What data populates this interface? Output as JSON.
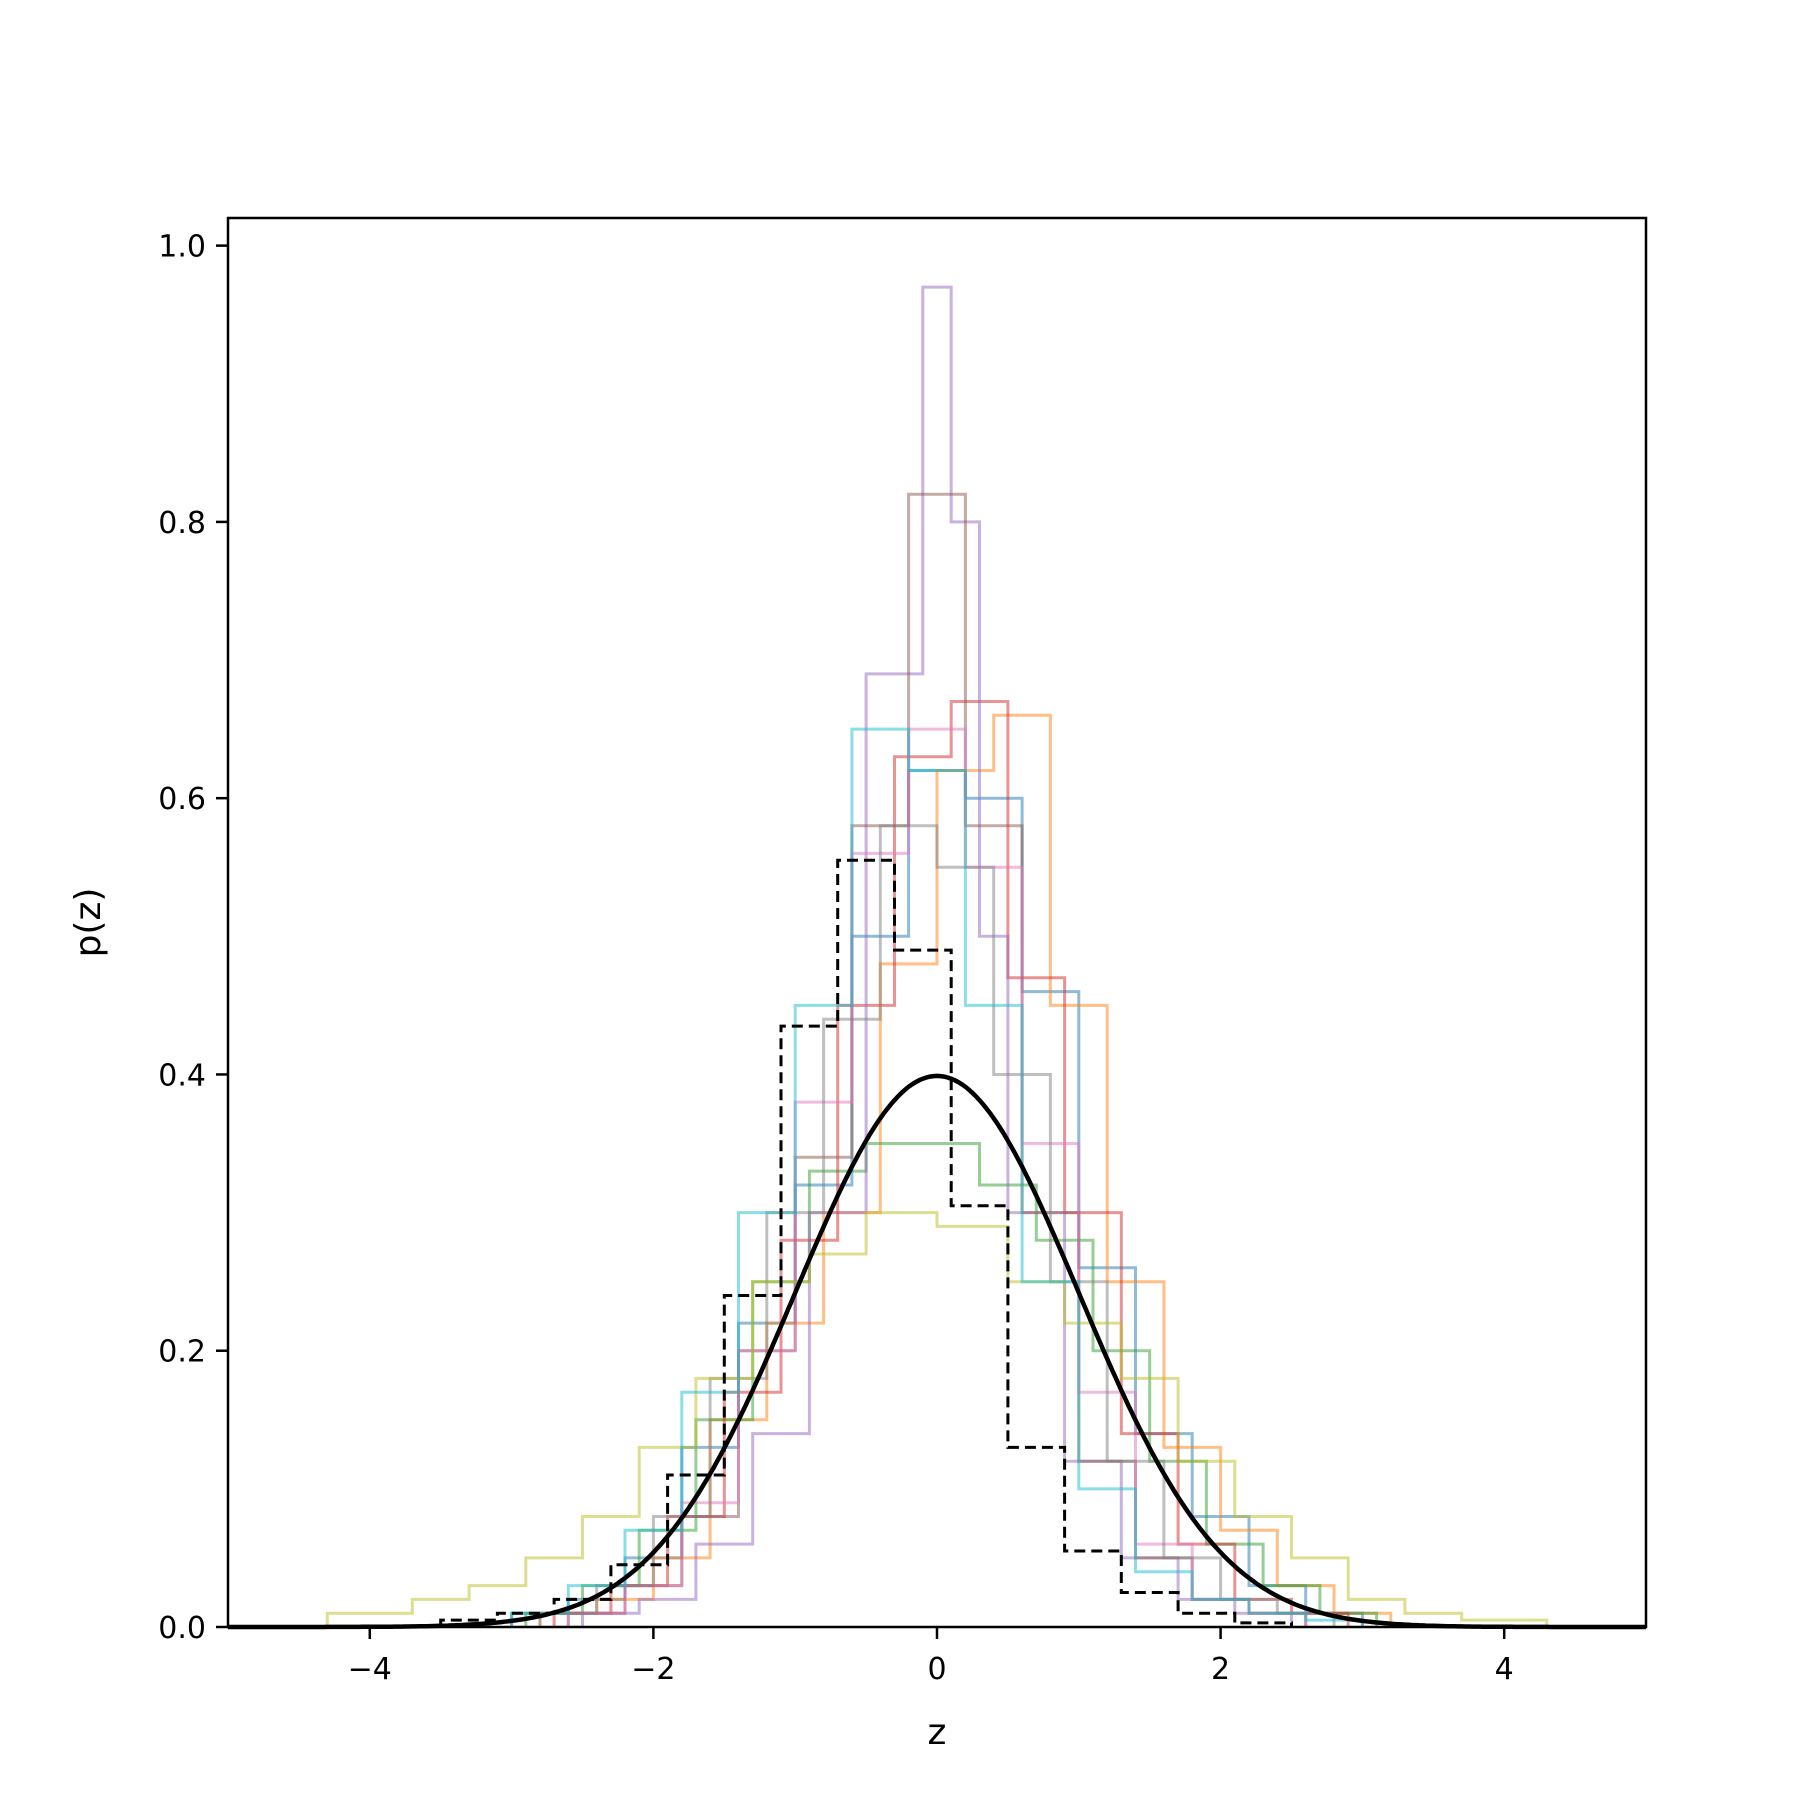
{
  "chart_data": {
    "type": "line",
    "title": "",
    "xlabel": "z",
    "ylabel": "p(z)",
    "xlim": [
      -5,
      5
    ],
    "ylim": [
      0,
      1.02
    ],
    "xticks": [
      -4,
      -2,
      0,
      2,
      4
    ],
    "xtick_labels": [
      "−4",
      "−2",
      "0",
      "2",
      "4"
    ],
    "yticks": [
      0.0,
      0.2,
      0.4,
      0.6,
      0.8,
      1.0
    ],
    "ytick_labels": [
      "0.0",
      "0.2",
      "0.4",
      "0.6",
      "0.8",
      "1.0"
    ],
    "grid": false,
    "legend": "none",
    "histogram_series": [
      {
        "color": "#1f77b4",
        "edges": [
          -3.0,
          -2.6,
          -2.2,
          -1.8,
          -1.4,
          -1.0,
          -0.6,
          -0.2,
          0.2,
          0.6,
          1.0,
          1.4,
          1.8,
          2.2,
          2.6,
          3.0
        ],
        "values": [
          0.01,
          0.02,
          0.05,
          0.13,
          0.22,
          0.32,
          0.5,
          0.62,
          0.6,
          0.46,
          0.26,
          0.14,
          0.08,
          0.03,
          0.01
        ]
      },
      {
        "color": "#ff7f0e",
        "edges": [
          -2.8,
          -2.4,
          -2.0,
          -1.6,
          -1.2,
          -0.8,
          -0.4,
          0.0,
          0.4,
          0.8,
          1.2,
          1.6,
          2.0,
          2.4,
          2.8,
          3.2
        ],
        "values": [
          0.01,
          0.02,
          0.05,
          0.15,
          0.22,
          0.3,
          0.48,
          0.62,
          0.66,
          0.45,
          0.25,
          0.13,
          0.07,
          0.03,
          0.01
        ]
      },
      {
        "color": "#2ca02c",
        "edges": [
          -2.9,
          -2.5,
          -2.1,
          -1.7,
          -1.3,
          -0.9,
          -0.5,
          -0.1,
          0.3,
          0.7,
          1.1,
          1.5,
          1.9,
          2.3,
          2.7,
          3.1
        ],
        "values": [
          0.01,
          0.03,
          0.07,
          0.15,
          0.25,
          0.33,
          0.35,
          0.35,
          0.32,
          0.28,
          0.2,
          0.12,
          0.06,
          0.03,
          0.01
        ]
      },
      {
        "color": "#d62728",
        "edges": [
          -2.7,
          -2.3,
          -1.9,
          -1.5,
          -1.1,
          -0.7,
          -0.3,
          0.1,
          0.5,
          0.9,
          1.3,
          1.7,
          2.1,
          2.5,
          2.9
        ],
        "values": [
          0.01,
          0.03,
          0.08,
          0.17,
          0.28,
          0.45,
          0.63,
          0.67,
          0.47,
          0.3,
          0.14,
          0.06,
          0.02,
          0.01
        ]
      },
      {
        "color": "#9467bd",
        "edges": [
          -2.5,
          -2.1,
          -1.7,
          -1.3,
          -0.9,
          -0.5,
          -0.1,
          0.1,
          0.3,
          0.5,
          0.9,
          1.3,
          1.7,
          2.1,
          2.5
        ],
        "values": [
          0.01,
          0.02,
          0.06,
          0.14,
          0.3,
          0.69,
          0.97,
          0.8,
          0.5,
          0.3,
          0.12,
          0.05,
          0.02,
          0.01
        ]
      },
      {
        "color": "#8c564b",
        "edges": [
          -2.6,
          -2.2,
          -1.8,
          -1.4,
          -1.0,
          -0.6,
          -0.2,
          0.2,
          0.6,
          1.0,
          1.4,
          1.8,
          2.2,
          2.6
        ],
        "values": [
          0.01,
          0.03,
          0.08,
          0.2,
          0.34,
          0.58,
          0.82,
          0.58,
          0.3,
          0.12,
          0.05,
          0.02,
          0.01
        ]
      },
      {
        "color": "#e377c2",
        "edges": [
          -2.6,
          -2.2,
          -1.8,
          -1.4,
          -1.0,
          -0.6,
          -0.2,
          0.2,
          0.6,
          1.0,
          1.4,
          1.8,
          2.2,
          2.6
        ],
        "values": [
          0.01,
          0.03,
          0.09,
          0.2,
          0.38,
          0.56,
          0.65,
          0.55,
          0.35,
          0.17,
          0.06,
          0.02,
          0.01
        ]
      },
      {
        "color": "#7f7f7f",
        "edges": [
          -2.8,
          -2.4,
          -2.0,
          -1.6,
          -1.2,
          -0.8,
          -0.4,
          0.0,
          0.4,
          0.8,
          1.2,
          1.6,
          2.0,
          2.4,
          2.8
        ],
        "values": [
          0.01,
          0.03,
          0.08,
          0.18,
          0.3,
          0.44,
          0.58,
          0.55,
          0.4,
          0.25,
          0.12,
          0.05,
          0.02,
          0.01
        ]
      },
      {
        "color": "#bcbd22",
        "edges": [
          -4.3,
          -3.7,
          -3.3,
          -2.9,
          -2.5,
          -2.1,
          -1.7,
          -1.3,
          -0.9,
          -0.5,
          0.0,
          0.5,
          0.9,
          1.3,
          1.7,
          2.1,
          2.5,
          2.9,
          3.3,
          3.7,
          4.3
        ],
        "values": [
          0.01,
          0.02,
          0.03,
          0.05,
          0.08,
          0.13,
          0.18,
          0.25,
          0.27,
          0.3,
          0.29,
          0.25,
          0.22,
          0.18,
          0.12,
          0.08,
          0.05,
          0.02,
          0.01,
          0.005
        ]
      },
      {
        "color": "#17becf",
        "edges": [
          -3.0,
          -2.6,
          -2.2,
          -1.8,
          -1.4,
          -1.0,
          -0.6,
          -0.2,
          0.2,
          0.6,
          1.0,
          1.4,
          1.8,
          2.2,
          2.6,
          3.0
        ],
        "values": [
          0.01,
          0.03,
          0.07,
          0.17,
          0.3,
          0.45,
          0.65,
          0.62,
          0.45,
          0.25,
          0.1,
          0.04,
          0.02,
          0.01,
          0.005
        ]
      }
    ],
    "dashed_histogram": {
      "color": "#000000",
      "edges": [
        -3.5,
        -3.1,
        -2.7,
        -2.3,
        -1.9,
        -1.5,
        -1.1,
        -0.7,
        -0.3,
        0.1,
        0.5,
        0.9,
        1.3,
        1.7,
        2.1,
        2.5
      ],
      "values": [
        0.005,
        0.01,
        0.02,
        0.045,
        0.11,
        0.24,
        0.435,
        0.555,
        0.49,
        0.305,
        0.13,
        0.055,
        0.025,
        0.01,
        0.003
      ]
    },
    "curve": {
      "type": "normal_pdf",
      "mean": 0,
      "std": 1,
      "color": "#000000",
      "x_range": [
        -5,
        5
      ]
    }
  }
}
